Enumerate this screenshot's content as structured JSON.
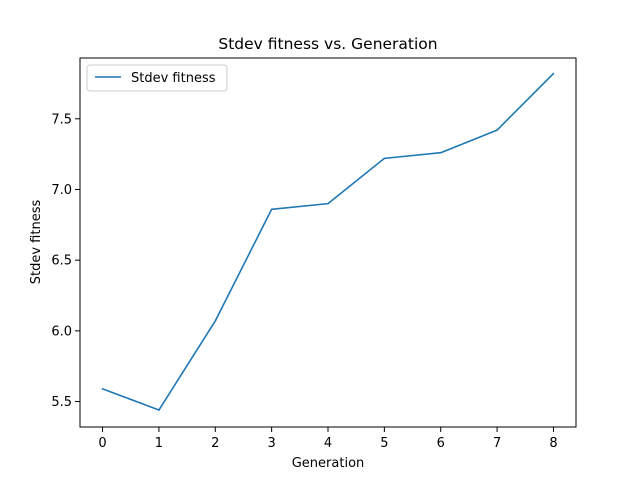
{
  "chart_data": {
    "type": "line",
    "title": "Stdev fitness vs. Generation",
    "xlabel": "Generation",
    "ylabel": "Stdev fitness",
    "x": [
      0,
      1,
      2,
      3,
      4,
      5,
      6,
      7,
      8
    ],
    "xticks": [
      "0",
      "1",
      "2",
      "3",
      "4",
      "5",
      "6",
      "7",
      "8"
    ],
    "yticks": [
      "5.5",
      "6.0",
      "6.5",
      "7.0",
      "7.5"
    ],
    "xlim": [
      -0.4,
      8.4
    ],
    "ylim": [
      5.32,
      7.93
    ],
    "grid": false,
    "legend_position": "top-left",
    "series": [
      {
        "name": "Stdev fitness",
        "color": "#1f77b4",
        "values": [
          5.59,
          5.44,
          6.07,
          6.86,
          6.9,
          7.22,
          7.26,
          7.42,
          7.82
        ]
      }
    ]
  }
}
